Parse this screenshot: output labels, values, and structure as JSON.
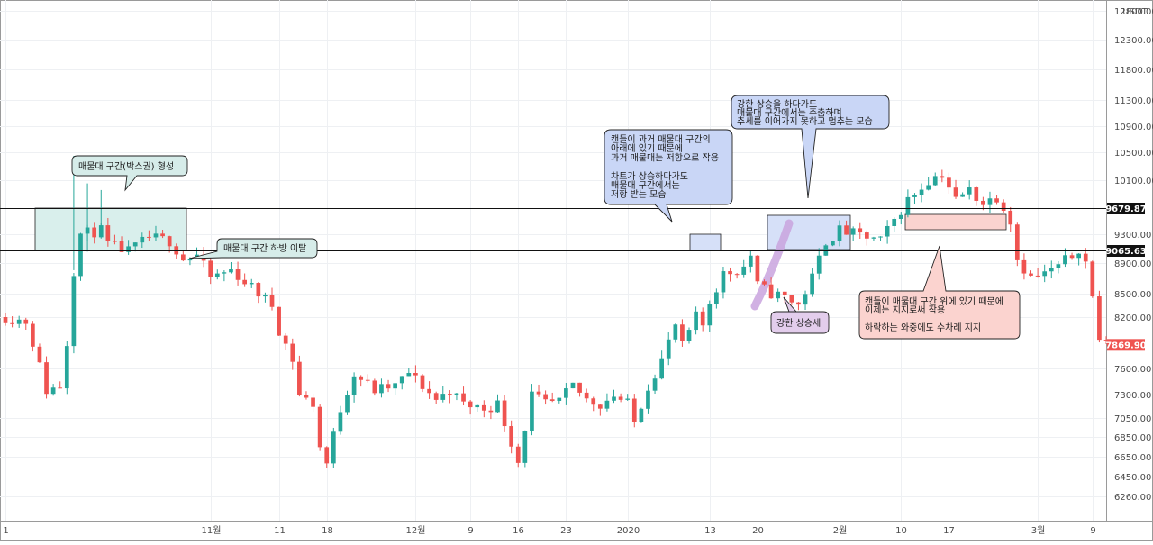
{
  "chart_data": {
    "type": "candlestick",
    "currency": "USDT",
    "y_ticks": [
      12800,
      12300,
      11800,
      11300,
      10900,
      10500,
      10100,
      9300,
      8900,
      8500,
      8200,
      7600,
      7300,
      7050,
      6850,
      6650,
      6450,
      6260
    ],
    "x_ticks": [
      "1",
      "11월",
      "11",
      "18",
      "12월",
      "9",
      "16",
      "23",
      "2020",
      "13",
      "20",
      "2월",
      "10",
      "17",
      "3월",
      "9"
    ],
    "x_tick_days": [
      -30,
      0,
      10,
      17,
      30,
      38,
      45,
      52,
      61,
      73,
      80,
      92,
      101,
      108,
      121,
      129
    ],
    "x_range": [
      -30,
      131
    ],
    "horizontal_levels": [
      {
        "price": 9679.87,
        "label": "9679.87"
      },
      {
        "price": 9065.63,
        "label": "9065.63"
      }
    ],
    "last_price": {
      "price": 7869.9,
      "label": "7869.90"
    },
    "anchors": [
      [
        -30,
        8200
      ],
      [
        -27,
        8150
      ],
      [
        -26,
        7900
      ],
      [
        -24,
        7350
      ],
      [
        -22,
        7400
      ],
      [
        -21,
        7900
      ],
      [
        -20,
        8800
      ],
      [
        -19,
        9300
      ],
      [
        -16,
        9350
      ],
      [
        -15,
        9150
      ],
      [
        -12,
        9050
      ],
      [
        -9,
        9250
      ],
      [
        -6,
        9200
      ],
      [
        -4,
        8950
      ],
      [
        -2,
        9000
      ],
      [
        0,
        8700
      ],
      [
        3,
        8800
      ],
      [
        5,
        8650
      ],
      [
        7,
        8500
      ],
      [
        9,
        8350
      ],
      [
        10,
        8050
      ],
      [
        12,
        7700
      ],
      [
        13,
        7300
      ],
      [
        15,
        7200
      ],
      [
        16,
        6750
      ],
      [
        17,
        6580
      ],
      [
        19,
        7150
      ],
      [
        21,
        7550
      ],
      [
        24,
        7350
      ],
      [
        27,
        7400
      ],
      [
        29,
        7550
      ],
      [
        31,
        7400
      ],
      [
        33,
        7250
      ],
      [
        35,
        7350
      ],
      [
        37,
        7200
      ],
      [
        40,
        7150
      ],
      [
        42,
        7200
      ],
      [
        44,
        6800
      ],
      [
        45,
        6600
      ],
      [
        47,
        7300
      ],
      [
        49,
        7200
      ],
      [
        51,
        7220
      ],
      [
        53,
        7400
      ],
      [
        55,
        7250
      ],
      [
        57,
        7200
      ],
      [
        59,
        7300
      ],
      [
        61,
        7200
      ],
      [
        62,
        7000
      ],
      [
        64,
        7400
      ],
      [
        66,
        7700
      ],
      [
        68,
        8100
      ],
      [
        69,
        7850
      ],
      [
        71,
        8200
      ],
      [
        72,
        8100
      ],
      [
        73,
        8400
      ],
      [
        75,
        8750
      ],
      [
        77,
        8800
      ],
      [
        78,
        8850
      ],
      [
        79,
        9000
      ],
      [
        80,
        8600
      ],
      [
        82,
        8500
      ],
      [
        84,
        8450
      ],
      [
        86,
        8350
      ],
      [
        88,
        8700
      ],
      [
        90,
        9200
      ],
      [
        92,
        9350
      ],
      [
        94,
        9300
      ],
      [
        96,
        9250
      ],
      [
        98,
        9200
      ],
      [
        100,
        9500
      ],
      [
        102,
        9800
      ],
      [
        104,
        10000
      ],
      [
        105,
        10100
      ],
      [
        107,
        10200
      ],
      [
        109,
        9800
      ],
      [
        111,
        9950
      ],
      [
        113,
        9750
      ],
      [
        115,
        9850
      ],
      [
        116,
        9700
      ],
      [
        117,
        9500
      ],
      [
        118,
        8950
      ],
      [
        120,
        8700
      ],
      [
        122,
        8750
      ],
      [
        124,
        8850
      ],
      [
        126,
        9000
      ],
      [
        127,
        9100
      ],
      [
        128,
        8900
      ],
      [
        129,
        8450
      ],
      [
        130,
        7950
      ],
      [
        131,
        7870
      ]
    ]
  },
  "axis": {
    "currency_label": "USDT"
  },
  "annotations": {
    "box_formation": "매물대 구간(박스권) 형성",
    "breakdown": "매물대 구간 하방 이탈",
    "resistance": [
      "캔들이 과거 매물대 구간의",
      "아래에 있기 때문에",
      "과거 매물대는 저항으로 작용",
      "",
      "차트가 상승하다가도",
      "매물대 구간에서는",
      "저항 받는 모습"
    ],
    "stall": [
      "강한 상승을 하다가도",
      "매물대 구간에서는 주춤하며",
      "추세를 이어가지 못하고 멈추는 모습"
    ],
    "strong_rise": "강한 상승세",
    "support": [
      "캔들이 매물대 구간 위에 있기 때문에",
      "이제는 지지로써 작용",
      "",
      "하락하는 와중에도 수차례 지지"
    ]
  },
  "colors": {
    "up": "#26a69a",
    "down": "#ef5350",
    "teal_note": "#d6ece9",
    "blue_note": "#c9d6f6",
    "purple_note": "#e3cdec",
    "red_note": "#fbd3cf"
  }
}
